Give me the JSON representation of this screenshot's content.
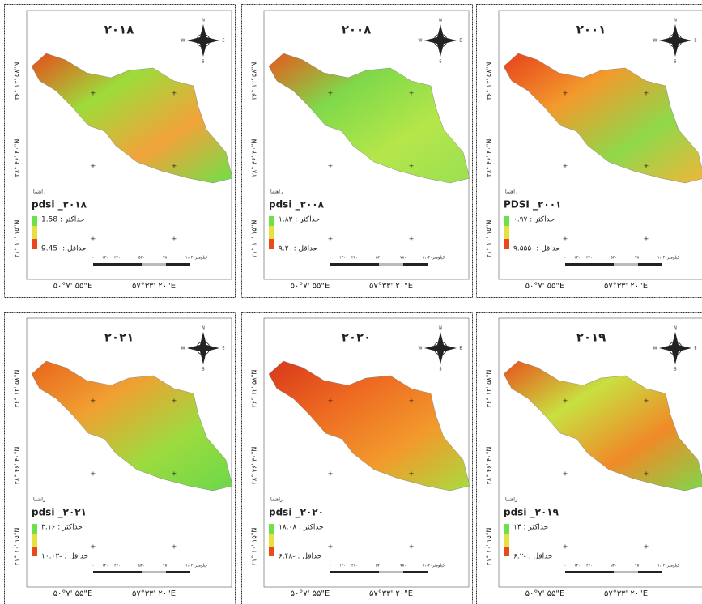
{
  "panels": [
    {
      "title": "۲۰۱۸",
      "legend_heading": "راهنما",
      "legend_title": "pdsi _۲۰۱۸",
      "max": "حداکثر : 1.58",
      "min": "حداقل : -9.45"
    },
    {
      "title": "۲۰۰۸",
      "legend_heading": "راهنما",
      "legend_title": "pdsi _۲۰۰۸",
      "max": "حداکثر : ۱.۸۳",
      "min": "حداقل : -۹.۲"
    },
    {
      "title": "۲۰۰۱",
      "legend_heading": "راهنما",
      "legend_title": "PDSI _۲۰۰۱",
      "max": "حداکثر : ۰.۹۷",
      "min": "حداقل : -۹.۵۵۵"
    },
    {
      "title": "۲۰۲۱",
      "legend_heading": "راهنما",
      "legend_title": "pdsi _۲۰۲۱",
      "max": "حداکثر : ۳.۱۶",
      "min": "حداقل : -۱۰.۰۳"
    },
    {
      "title": "۲۰۲۰",
      "legend_heading": "راهنما",
      "legend_title": "pdsi _۲۰۲۰",
      "max": "حداکثر : ۱۸.۰۸",
      "min": "حداقل : -۶.۴۸"
    },
    {
      "title": "۲۰۱۹",
      "legend_heading": "راهنما",
      "legend_title": "pdsi _۲۰۱۹",
      "max": "حداکثر : ۱۴",
      "min": "حداقل : -۶.۲"
    }
  ],
  "compass": {
    "n": "N",
    "s": "S",
    "e": "E",
    "w": "W"
  },
  "scale": {
    "ticks": [
      "۰",
      "۱۳۰",
      "۲۶۰",
      "۵۲۰",
      "۷۸۰",
      "۱،۰۴۰"
    ],
    "unit": "کیلومتر"
  },
  "longitudes": [
    "۵۰°۷' ۵۵\"E",
    "۵۷°۳۳' ۲۰\"E"
  ],
  "latitudes": [
    "۳۶° ۱۲' ۵۸\"N",
    "۲۸° ۴۶' ۴۰\"N",
    "۲۱° ۱۰' ۱۵\"N"
  ]
}
